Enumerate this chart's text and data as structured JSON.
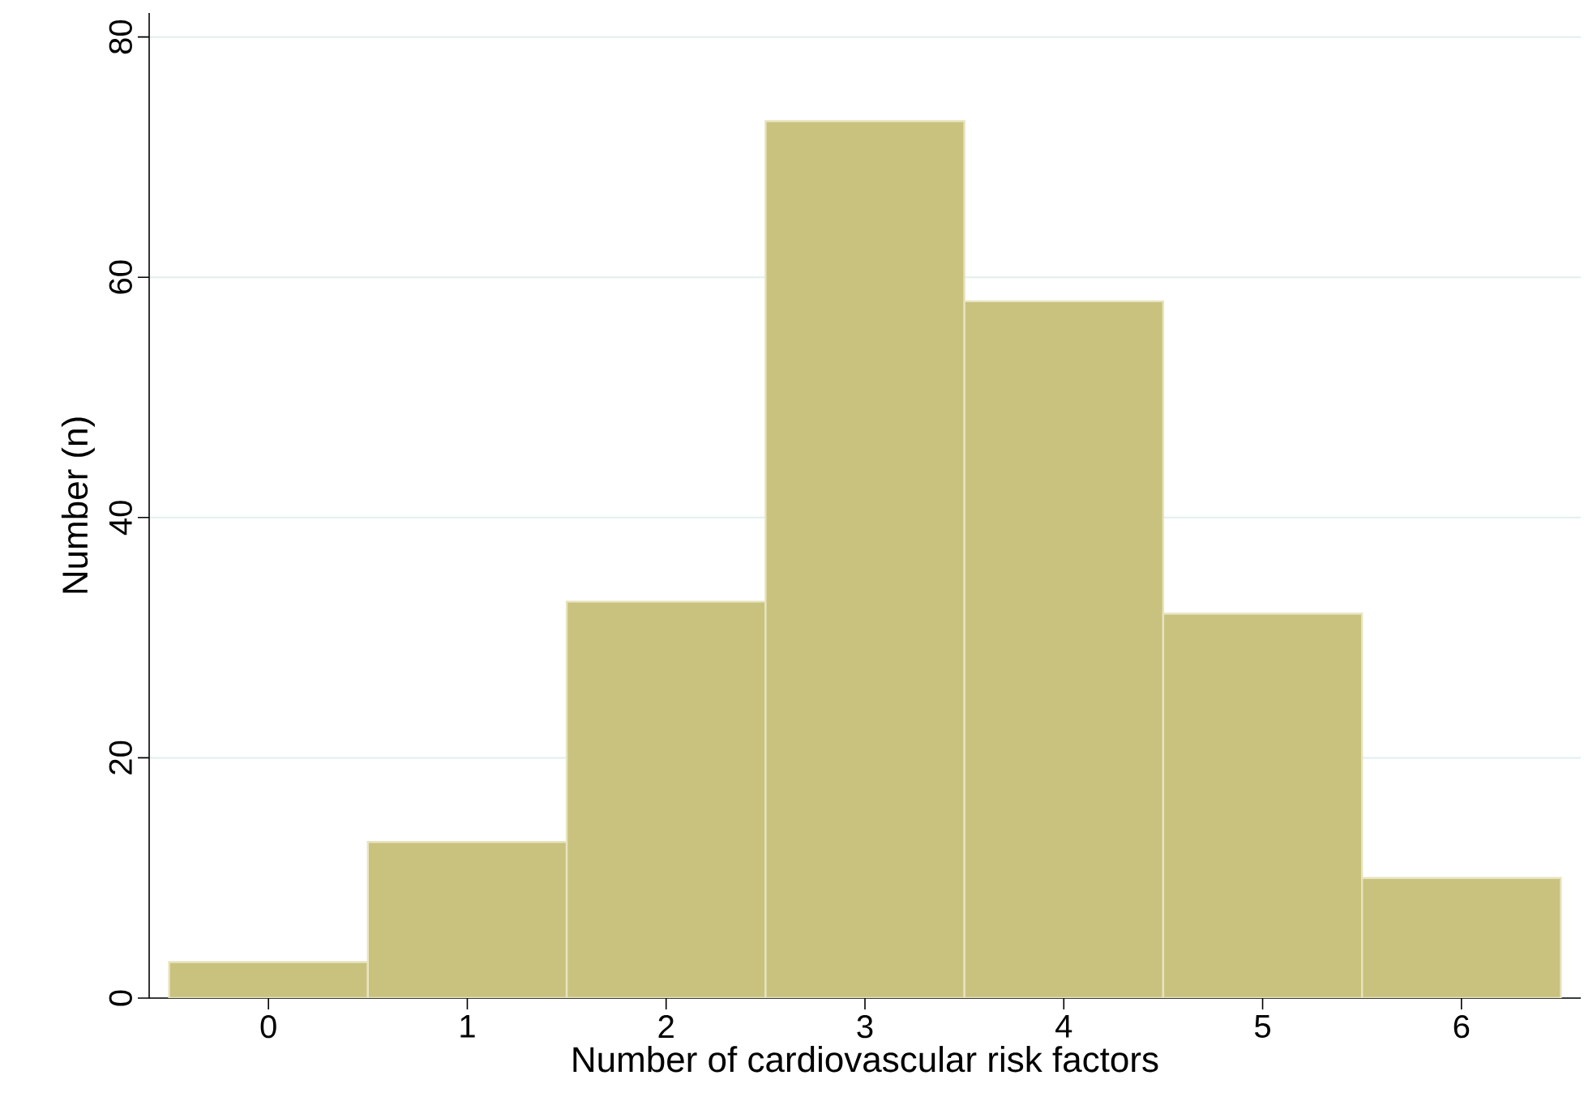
{
  "chart_data": {
    "type": "histogram",
    "xlabel": "Number of cardiovascular risk factors",
    "ylabel": "Number (n)",
    "bins": [
      -0.5,
      0.5,
      1.5,
      2.5,
      3.5,
      4.5,
      5.5,
      6.5
    ],
    "values": [
      3,
      13,
      33,
      73,
      58,
      32,
      10
    ],
    "color": "#c9c27f",
    "xlim": [
      -0.6,
      6.6
    ],
    "ylim": [
      0,
      82
    ],
    "xticks": [
      0,
      1,
      2,
      3,
      4,
      5,
      6
    ],
    "yticks": [
      0,
      20,
      40,
      60,
      80
    ],
    "grid": "y"
  }
}
